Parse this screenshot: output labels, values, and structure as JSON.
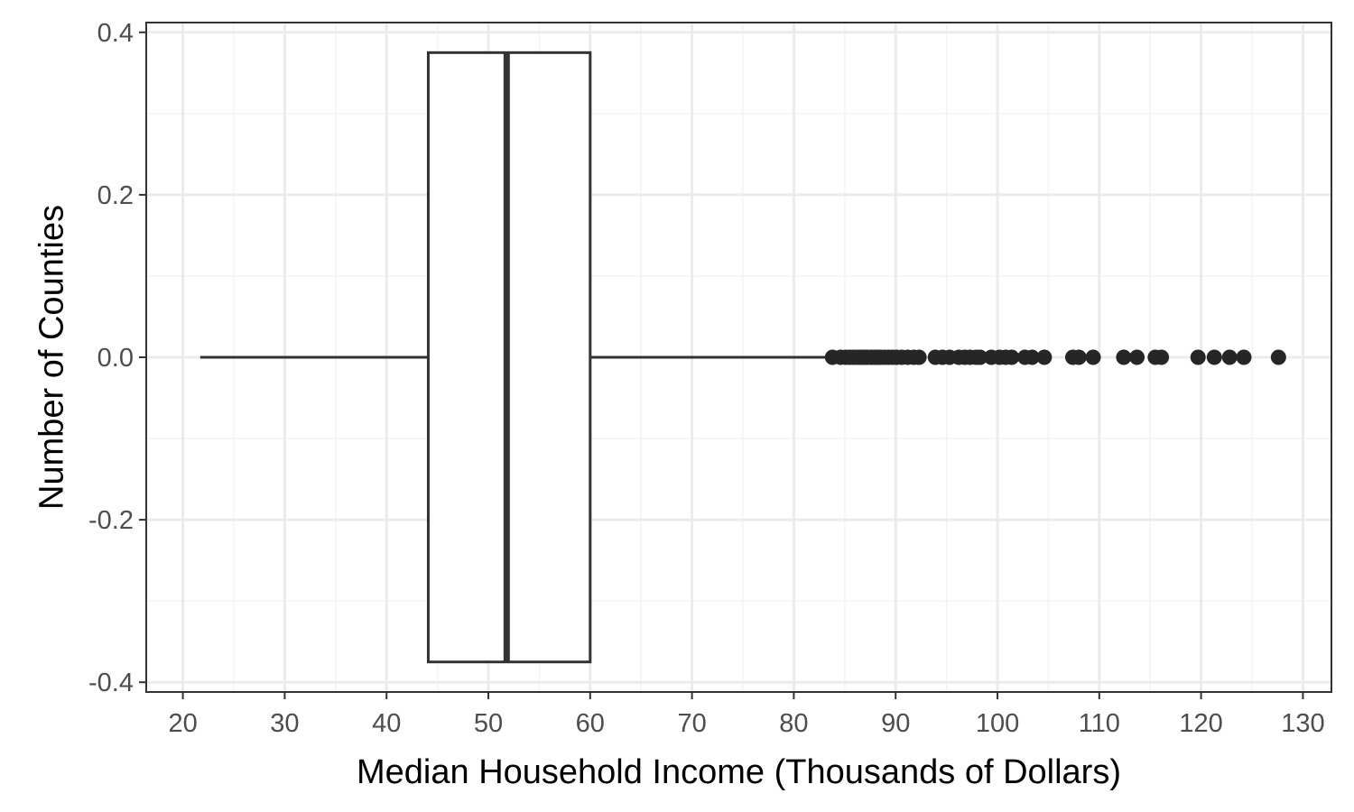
{
  "chart_data": {
    "type": "boxplot",
    "title": "",
    "xlabel": "Median Household Income (Thousands of Dollars)",
    "ylabel": "Number of Counties",
    "xlim": [
      16.4,
      132.8
    ],
    "ylim": [
      -0.412,
      0.412
    ],
    "x_ticks": [
      20,
      30,
      40,
      50,
      60,
      70,
      80,
      90,
      100,
      110,
      120,
      130
    ],
    "x_tick_labels": [
      "20",
      "30",
      "40",
      "50",
      "60",
      "70",
      "80",
      "90",
      "100",
      "110",
      "120",
      "130"
    ],
    "y_ticks": [
      -0.4,
      -0.2,
      0.0,
      0.2,
      0.4
    ],
    "y_tick_labels": [
      "-0.4",
      "-0.2",
      "0.0",
      "0.2",
      "0.4"
    ],
    "grid": true,
    "box": {
      "whisker_low": 21.7,
      "q1": 44.1,
      "median": 51.8,
      "q3": 60.0,
      "whisker_high": 83.7,
      "y_center": 0.0,
      "half_height": 0.375
    },
    "outliers": [
      83.8,
      84.6,
      85.1,
      85.5,
      85.9,
      86.3,
      86.6,
      86.9,
      87.2,
      87.6,
      87.9,
      88.2,
      88.5,
      88.9,
      89.3,
      89.7,
      90.1,
      90.6,
      91.2,
      91.8,
      92.3,
      93.9,
      94.6,
      95.3,
      96.2,
      96.8,
      97.3,
      97.9,
      98.3,
      99.4,
      100.2,
      100.8,
      101.4,
      102.7,
      103.4,
      104.6,
      107.4,
      108.0,
      109.4,
      112.4,
      113.7,
      115.5,
      116.1,
      119.7,
      121.3,
      122.8,
      124.2,
      127.6
    ],
    "colors": {
      "background": "#ffffff",
      "grid_major": "#ebebeb",
      "grid_minor": "#f3f3f3",
      "panel_border": "#333333",
      "box_outline": "#333333",
      "box_fill": "#ffffff",
      "points": "#262626",
      "tick_text": "#4d4d4d",
      "title_text": "#000000"
    }
  }
}
